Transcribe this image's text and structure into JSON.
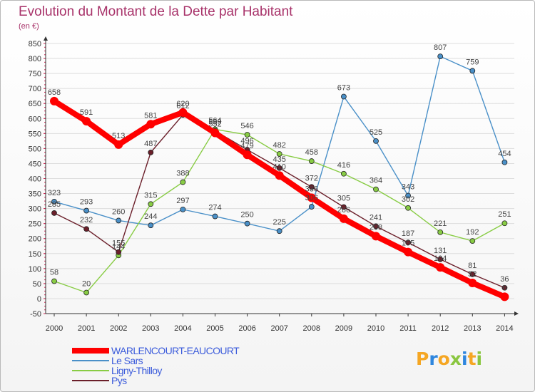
{
  "title": "Evolution du Montant de la Dette par Habitant",
  "subtitle": "(en €)",
  "logo": {
    "text": "Proxiti",
    "colors": [
      "#f5a623",
      "#2e86de",
      "#f5a623",
      "#8ac640",
      "#2e86de",
      "#f5a623",
      "#8ac640"
    ]
  },
  "chart_data": {
    "type": "line",
    "x": [
      "2000",
      "2001",
      "2002",
      "2003",
      "2004",
      "2005",
      "2006",
      "2007",
      "2008",
      "2009",
      "2010",
      "2011",
      "2012",
      "2013",
      "2014"
    ],
    "ylim": [
      -50,
      850
    ],
    "yticks": [
      -50,
      0,
      50,
      100,
      150,
      200,
      250,
      300,
      350,
      400,
      450,
      500,
      550,
      600,
      650,
      700,
      750,
      800,
      850
    ],
    "grid": true,
    "legend_position": "bottom-left",
    "series": [
      {
        "name": "WARLENCOURT-EAUCOURT",
        "color": "#ff0000",
        "values": [
          658,
          591,
          513,
          581,
          620,
          552,
          479,
          410,
          336,
          266,
          208,
          155,
          104,
          52,
          6
        ],
        "labels": [
          "658",
          "591",
          "513",
          "581",
          "620",
          "552",
          "479",
          "410",
          "336",
          "266",
          "208",
          "155",
          "104",
          "52",
          "6"
        ]
      },
      {
        "name": "Le Sars",
        "color": "#4a90c8",
        "values": [
          323,
          293,
          260,
          244,
          297,
          274,
          250,
          225,
          306,
          673,
          525,
          343,
          807,
          759,
          454
        ],
        "labels": [
          "323",
          "293",
          "260",
          "244",
          "297",
          "274",
          "250",
          "225",
          "306",
          "673",
          "525",
          "343",
          "807",
          "759",
          "454"
        ]
      },
      {
        "name": "Ligny-Thilloy",
        "color": "#88cc44",
        "values": [
          58,
          20,
          144,
          315,
          388,
          564,
          546,
          482,
          458,
          416,
          364,
          302,
          221,
          192,
          251
        ],
        "labels": [
          "58",
          "20",
          "144",
          "315",
          "388",
          "564",
          "546",
          "482",
          "458",
          "416",
          "364",
          "302",
          "221",
          "192",
          "251"
        ]
      },
      {
        "name": "Pys",
        "color": "#6b1f2a",
        "values": [
          285,
          232,
          155,
          487,
          612,
          559,
          496,
          435,
          372,
          305,
          241,
          187,
          131,
          81,
          36
        ],
        "labels": [
          "285",
          "232",
          "155",
          "487",
          "612",
          "559",
          "496",
          "435",
          "372",
          "305",
          "241",
          "187",
          "131",
          "81",
          "36"
        ]
      }
    ]
  }
}
